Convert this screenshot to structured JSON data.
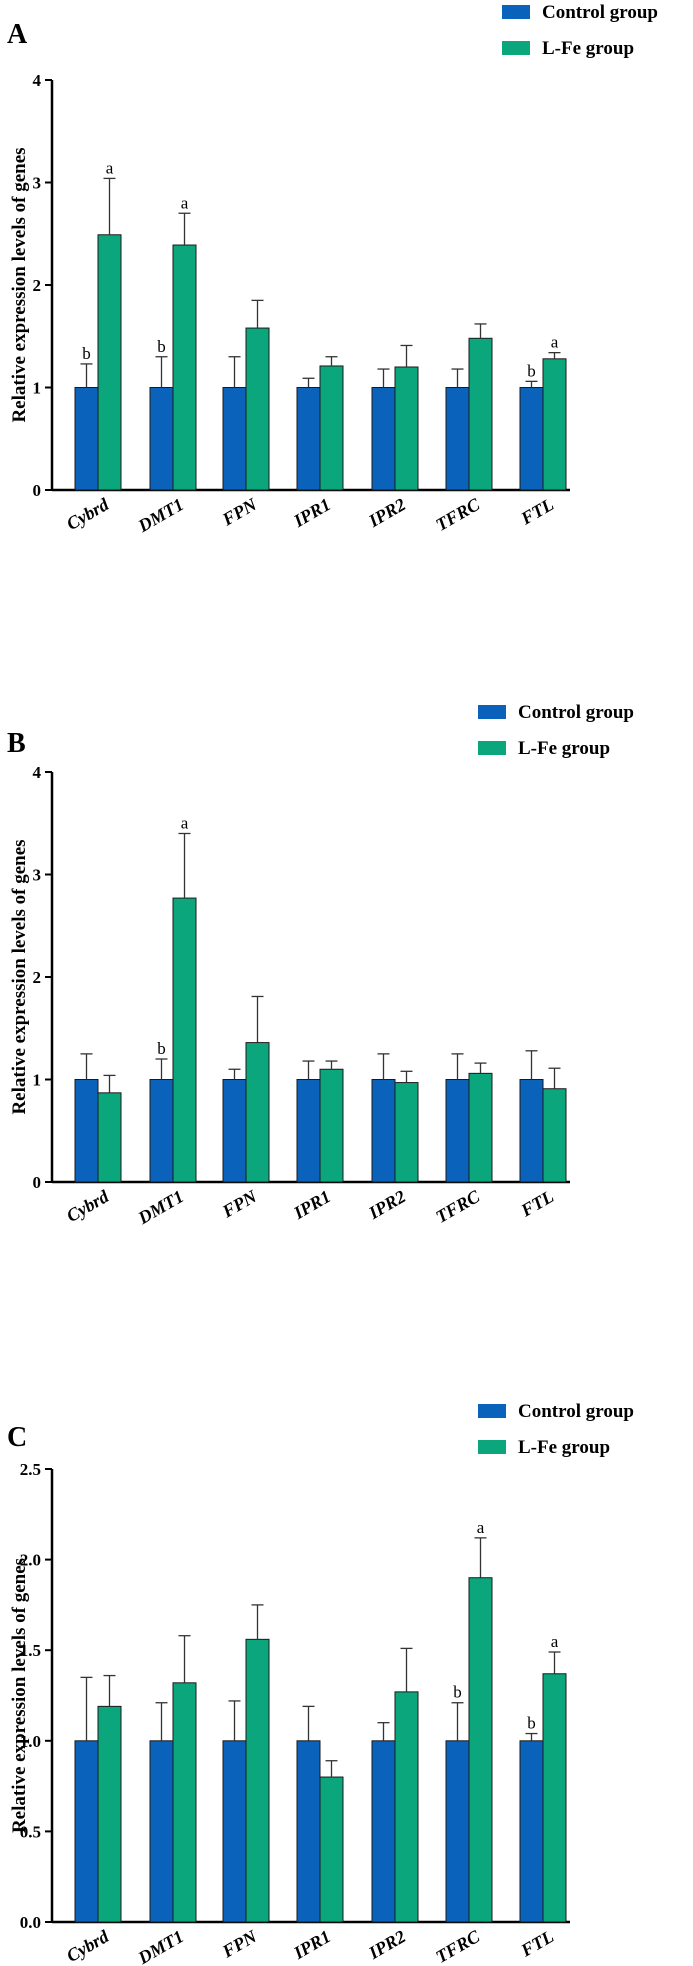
{
  "colors": {
    "control": "#0a62bb",
    "lfe": "#0ca67d",
    "axis": "#000000"
  },
  "legend": {
    "control_label": "Control group",
    "lfe_label": "L-Fe group"
  },
  "chart_data": [
    {
      "type": "bar",
      "panel": "A",
      "ylabel": "Relative expression levels of genes",
      "ylim": [
        0,
        4
      ],
      "yticks": [
        "0",
        "1",
        "2",
        "3",
        "4"
      ],
      "categories": [
        "Cybrd",
        "DMT1",
        "FPN",
        "IPR1",
        "IPR2",
        "TFRC",
        "FTL"
      ],
      "series": [
        {
          "name": "Control group",
          "values": [
            1.0,
            1.0,
            1.0,
            1.0,
            1.0,
            1.0,
            1.0
          ],
          "errors": [
            0.23,
            0.3,
            0.3,
            0.09,
            0.18,
            0.18,
            0.06
          ],
          "labels": [
            "b",
            "b",
            "",
            "",
            "",
            "",
            "b"
          ]
        },
        {
          "name": "L-Fe group",
          "values": [
            2.49,
            2.39,
            1.58,
            1.21,
            1.2,
            1.48,
            1.28
          ],
          "errors": [
            0.55,
            0.31,
            0.27,
            0.09,
            0.21,
            0.14,
            0.06
          ],
          "labels": [
            "a",
            "a",
            "",
            "",
            "",
            "",
            "a"
          ]
        }
      ]
    },
    {
      "type": "bar",
      "panel": "B",
      "ylabel": "Relative expression levels of genes",
      "ylim": [
        0,
        4
      ],
      "yticks": [
        "0",
        "1",
        "2",
        "3",
        "4"
      ],
      "categories": [
        "Cybrd",
        "DMT1",
        "FPN",
        "IPR1",
        "IPR2",
        "TFRC",
        "FTL"
      ],
      "series": [
        {
          "name": "Control group",
          "values": [
            1.0,
            1.0,
            1.0,
            1.0,
            1.0,
            1.0,
            1.0
          ],
          "errors": [
            0.25,
            0.2,
            0.1,
            0.18,
            0.25,
            0.25,
            0.28
          ],
          "labels": [
            "",
            "b",
            "",
            "",
            "",
            "",
            ""
          ]
        },
        {
          "name": "L-Fe group",
          "values": [
            0.87,
            2.77,
            1.36,
            1.1,
            0.97,
            1.06,
            0.91
          ],
          "errors": [
            0.17,
            0.63,
            0.45,
            0.08,
            0.11,
            0.1,
            0.2
          ],
          "labels": [
            "",
            "a",
            "",
            "",
            "",
            "",
            ""
          ]
        }
      ]
    },
    {
      "type": "bar",
      "panel": "C",
      "ylabel": "Relative expression levels of genes",
      "ylim": [
        0,
        2.5
      ],
      "yticks": [
        "0.0",
        "0.5",
        "1.0",
        "1.5",
        "2.0",
        "2.5"
      ],
      "categories": [
        "Cybrd",
        "DMT1",
        "FPN",
        "IPR1",
        "IPR2",
        "TFRC",
        "FTL"
      ],
      "series": [
        {
          "name": "Control group",
          "values": [
            1.0,
            1.0,
            1.0,
            1.0,
            1.0,
            1.0,
            1.0
          ],
          "errors": [
            0.35,
            0.21,
            0.22,
            0.19,
            0.1,
            0.21,
            0.04
          ],
          "labels": [
            "",
            "",
            "",
            "",
            "",
            "b",
            "b"
          ]
        },
        {
          "name": "L-Fe group",
          "values": [
            1.19,
            1.32,
            1.56,
            0.8,
            1.27,
            1.9,
            1.37
          ],
          "errors": [
            0.17,
            0.26,
            0.19,
            0.09,
            0.24,
            0.22,
            0.12
          ],
          "labels": [
            "",
            "",
            "",
            "",
            "",
            "a",
            "a"
          ]
        }
      ]
    }
  ]
}
